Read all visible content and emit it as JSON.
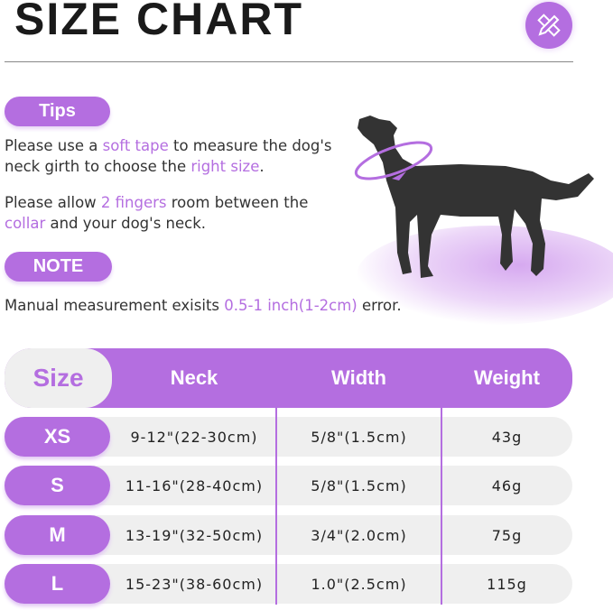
{
  "title": "SIZE CHART",
  "colors": {
    "accent": "#b46ee0",
    "row_bg": "#efefef",
    "text": "#222222"
  },
  "header_icon": "ruler-pencil-icon",
  "tips": {
    "label": "Tips",
    "p1": {
      "a": "Please use a ",
      "b": "soft tape",
      "c": " to measure the dog's neck girth to choose the ",
      "d": "right size",
      "e": "."
    },
    "p2": {
      "a": "Please allow ",
      "b": "2 fingers",
      "c": " room between the ",
      "d": "collar",
      "e": " and your dog's neck."
    }
  },
  "note": {
    "label": "NOTE",
    "a": "Manual measurement exisits ",
    "b": "0.5-1 inch(1-2cm)",
    "c": " error."
  },
  "table": {
    "headers": [
      "Size",
      "Neck",
      "Width",
      "Weight"
    ],
    "rows": [
      {
        "size": "XS",
        "neck": "9-12\"(22-30cm)",
        "width": "5/8\"(1.5cm)",
        "weight": "43g"
      },
      {
        "size": "S",
        "neck": "11-16\"(28-40cm)",
        "width": "5/8\"(1.5cm)",
        "weight": "46g"
      },
      {
        "size": "M",
        "neck": "13-19\"(32-50cm)",
        "width": "3/4\"(2.0cm)",
        "weight": "75g"
      },
      {
        "size": "L",
        "neck": "15-23\"(38-60cm)",
        "width": "1.0\"(2.5cm)",
        "weight": "115g"
      }
    ]
  }
}
